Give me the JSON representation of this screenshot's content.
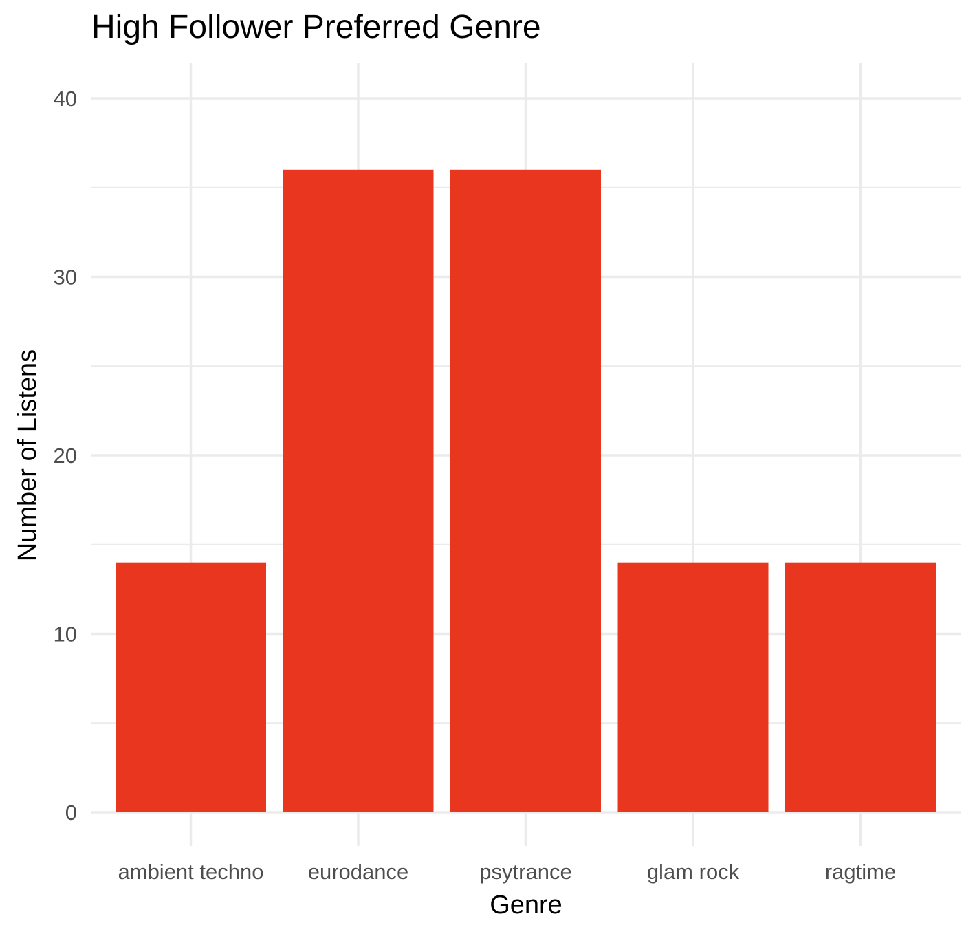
{
  "chart_data": {
    "type": "bar",
    "title": "High Follower Preferred Genre",
    "xlabel": "Genre",
    "ylabel": "Number of Listens",
    "categories": [
      "ambient techno",
      "eurodance",
      "psytrance",
      "glam rock",
      "ragtime"
    ],
    "values": [
      14,
      36,
      36,
      14,
      14
    ],
    "ylim": [
      0,
      42
    ],
    "yticks": [
      0,
      10,
      20,
      30,
      40
    ],
    "grid": true,
    "legend": "none",
    "bar_color": "#E8361F",
    "grid_color": "#EBEBEB"
  }
}
